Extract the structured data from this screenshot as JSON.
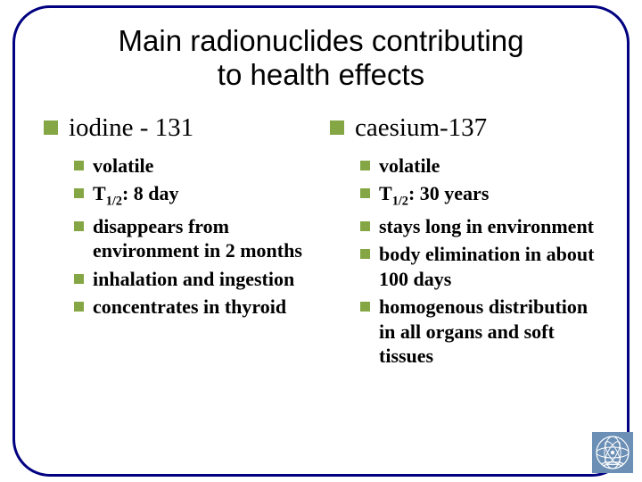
{
  "title_line1": "Main radionuclides contributing",
  "title_line2": "to health effects",
  "colors": {
    "border": "#000080",
    "bullet": "#85a644",
    "text": "#000000",
    "background": "#ffffff",
    "logo_bg": "#6b8fb5",
    "logo_fg": "#ffffff"
  },
  "fonts": {
    "title_family": "Arial",
    "title_size_pt": 25,
    "heading_size_pt": 22,
    "body_family": "Times New Roman",
    "body_size_pt": 17,
    "body_weight": "bold"
  },
  "left": {
    "heading": "iodine - 131",
    "items": [
      "volatile",
      "T<sub>1/2</sub>: 8 day",
      "disappears from environment in 2 months",
      "inhalation and ingestion",
      "concentrates in thyroid"
    ]
  },
  "right": {
    "heading": "caesium-137",
    "items": [
      "volatile",
      "T<sub>1/2</sub>: 30 years",
      "stays long in environment",
      "body elimination in about 100 days",
      "homogenous distribution in all organs and soft tissues"
    ]
  },
  "logo_name": "iaea-logo"
}
